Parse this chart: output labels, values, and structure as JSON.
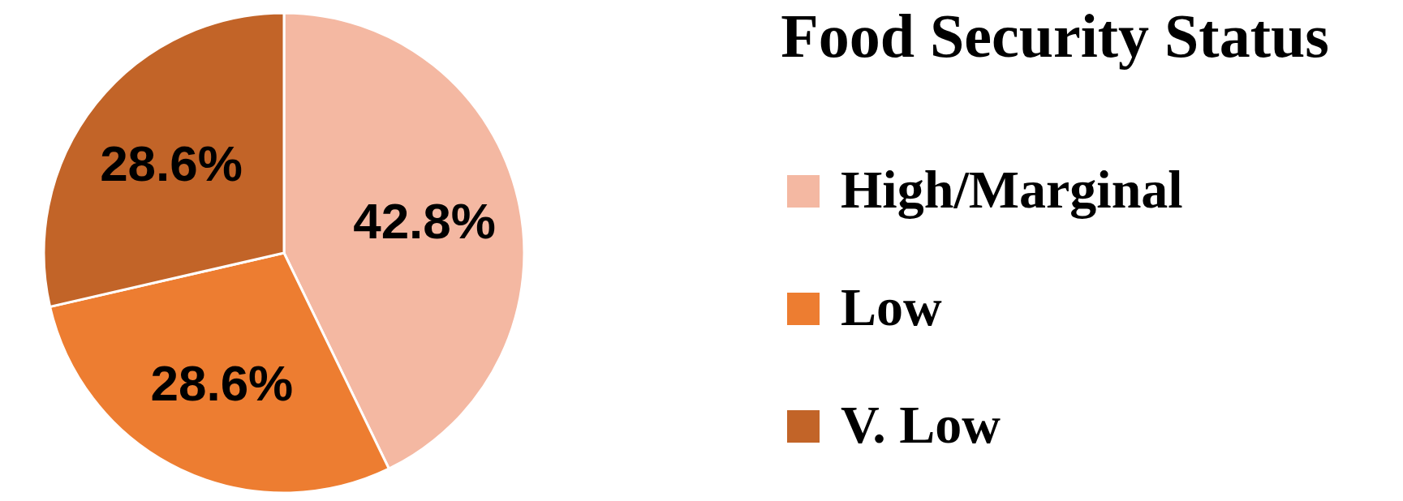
{
  "chart_data": {
    "type": "pie",
    "legend_title": "Food Security Status",
    "categories": [
      "High/Marginal",
      "Low",
      "V. Low"
    ],
    "values": [
      42.8,
      28.6,
      28.6
    ],
    "colors": [
      "#f4b8a2",
      "#ed7d31",
      "#c26428"
    ],
    "value_labels": [
      "42.8%",
      "28.6%",
      "28.6%"
    ],
    "legend": "right"
  }
}
